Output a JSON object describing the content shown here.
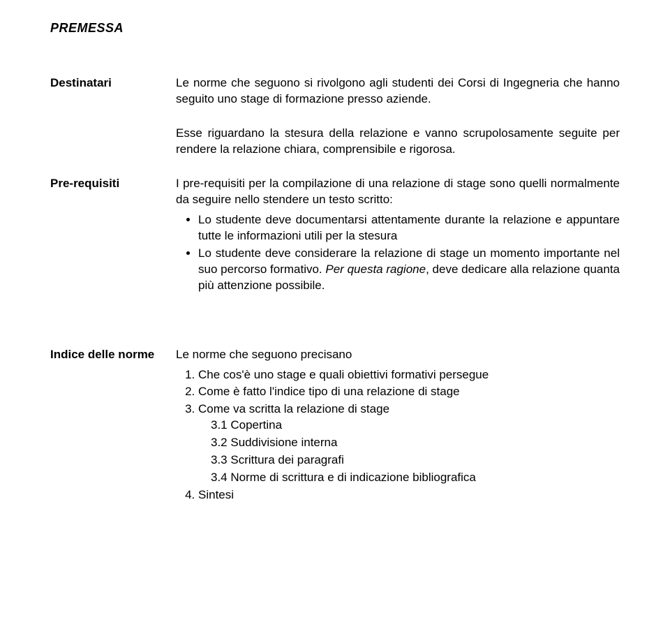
{
  "title": "PREMESSA",
  "sections": {
    "destinatari": {
      "label": "Destinatari",
      "p1": "Le norme che seguono si rivolgono agli studenti dei Corsi di Ingegneria che hanno seguito uno stage di formazione presso aziende.",
      "p2": "Esse riguardano la stesura della relazione e vanno scrupolosamente seguite per rendere la relazione chiara, comprensibile e rigorosa."
    },
    "prerequisiti": {
      "label": "Pre-requisiti",
      "intro": "I pre-requisiti per la compilazione di una relazione di stage sono quelli normalmente da seguire nello stendere un testo scritto:",
      "bullets": [
        "Lo studente deve documentarsi attentamente durante la relazione e appuntare tutte le informazioni utili per la stesura",
        "Lo studente deve considerare la relazione di stage un momento importante nel suo percorso formativo. "
      ],
      "bullet2_italic": "Per questa ragione",
      "bullet2_tail": ", deve dedicare alla relazione quanta più attenzione possibile."
    },
    "indice": {
      "label": "Indice delle norme",
      "intro": "Le norme che seguono precisano",
      "items": [
        "Che cos'è uno stage e quali obiettivi formativi persegue",
        "Come è fatto l'indice tipo di una relazione di stage",
        "Come va scritta la relazione di stage",
        "Sintesi"
      ],
      "sub3": [
        "3.1 Copertina",
        "3.2  Suddivisione interna",
        "3.3 Scrittura dei paragrafi",
        "3.4 Norme di scrittura e di indicazione bibliografica"
      ]
    }
  }
}
